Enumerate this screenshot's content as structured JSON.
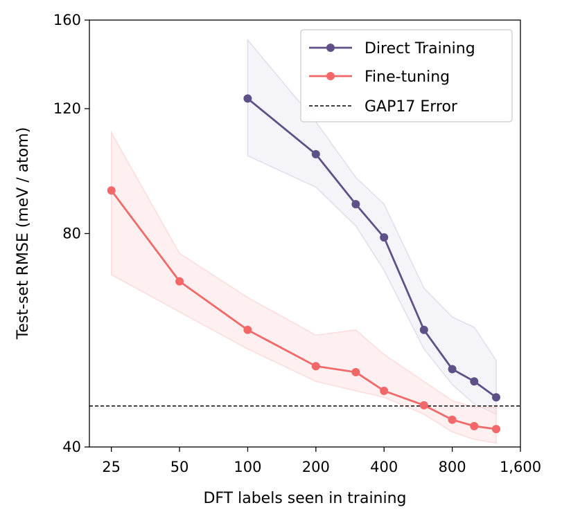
{
  "chart_data": {
    "type": "line",
    "xlabel": "DFT labels seen in training",
    "ylabel": "Test-set RMSE (meV / atom)",
    "x_scale": "log",
    "y_scale": "log",
    "xlim": [
      20,
      1600
    ],
    "ylim": [
      40,
      160
    ],
    "x_ticks": [
      25,
      50,
      100,
      200,
      400,
      800,
      1600
    ],
    "x_tick_labels": [
      "25",
      "50",
      "100",
      "200",
      "400",
      "800",
      "1,600"
    ],
    "y_ticks": [
      40,
      80,
      120,
      160
    ],
    "y_tick_labels": [
      "40",
      "80",
      "120",
      "160"
    ],
    "series": [
      {
        "name": "Direct Training",
        "color": "#5f5187",
        "band_color": "#d9d7e6",
        "x": [
          100,
          200,
          300,
          400,
          600,
          800,
          1000,
          1250
        ],
        "y": [
          124,
          103.5,
          88,
          79,
          58.5,
          51.5,
          49.5,
          47
        ],
        "band_lower": [
          103,
          93,
          82,
          71,
          55,
          49,
          46,
          44.5
        ],
        "band_upper": [
          150,
          115,
          96,
          88,
          67,
          61,
          59,
          53
        ]
      },
      {
        "name": "Fine-tuning",
        "color": "#f26868",
        "band_color": "#fbd4d4",
        "x": [
          25,
          50,
          100,
          200,
          300,
          400,
          600,
          800,
          1000,
          1250
        ],
        "y": [
          92,
          68.5,
          58.5,
          52,
          51,
          48,
          45.8,
          43.7,
          42.8,
          42.4
        ],
        "band_lower": [
          70,
          62,
          55,
          49.5,
          48,
          47,
          44.5,
          42,
          41,
          40.5
        ],
        "band_upper": [
          111,
          75,
          65,
          57.5,
          58.5,
          54,
          49.5,
          46.5,
          45.5,
          45.5
        ]
      }
    ],
    "reference_lines": [
      {
        "name": "GAP17 Error",
        "y": 45.7,
        "color": "#000000",
        "style": "dashed"
      }
    ],
    "legend": {
      "position": "top-right",
      "entries": [
        "Direct Training",
        "Fine-tuning",
        "GAP17 Error"
      ]
    },
    "grid": false
  }
}
